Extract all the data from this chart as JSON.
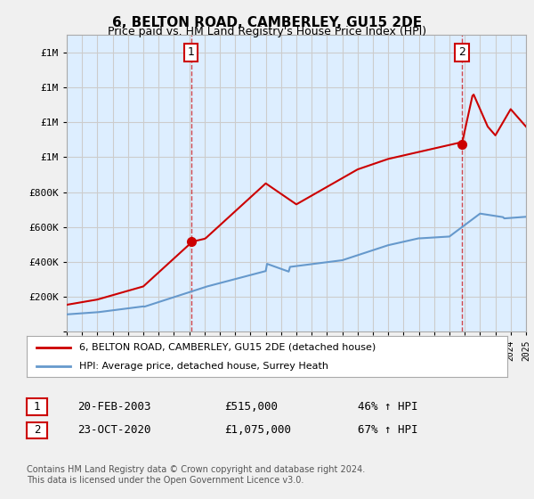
{
  "title": "6, BELTON ROAD, CAMBERLEY, GU15 2DE",
  "subtitle": "Price paid vs. HM Land Registry's House Price Index (HPI)",
  "legend_line1": "6, BELTON ROAD, CAMBERLEY, GU15 2DE (detached house)",
  "legend_line2": "HPI: Average price, detached house, Surrey Heath",
  "transaction1_label": "1",
  "transaction1_date": "20-FEB-2003",
  "transaction1_price": "£515,000",
  "transaction1_hpi": "46% ↑ HPI",
  "transaction2_label": "2",
  "transaction2_date": "23-OCT-2020",
  "transaction2_price": "£1,075,000",
  "transaction2_hpi": "67% ↑ HPI",
  "footer": "Contains HM Land Registry data © Crown copyright and database right 2024.\nThis data is licensed under the Open Government Licence v3.0.",
  "price_color": "#cc0000",
  "hpi_color": "#6699cc",
  "grid_color": "#cccccc",
  "plot_bg_color": "#ddeeff",
  "fig_bg_color": "#f0f0f0",
  "marker_color": "#cc0000",
  "transaction1_year": 2003.12,
  "transaction1_value": 515000,
  "transaction2_year": 2020.81,
  "transaction2_value": 1075000,
  "ylim": [
    0,
    1700000
  ],
  "xlim_start": 1995,
  "xlim_end": 2025
}
